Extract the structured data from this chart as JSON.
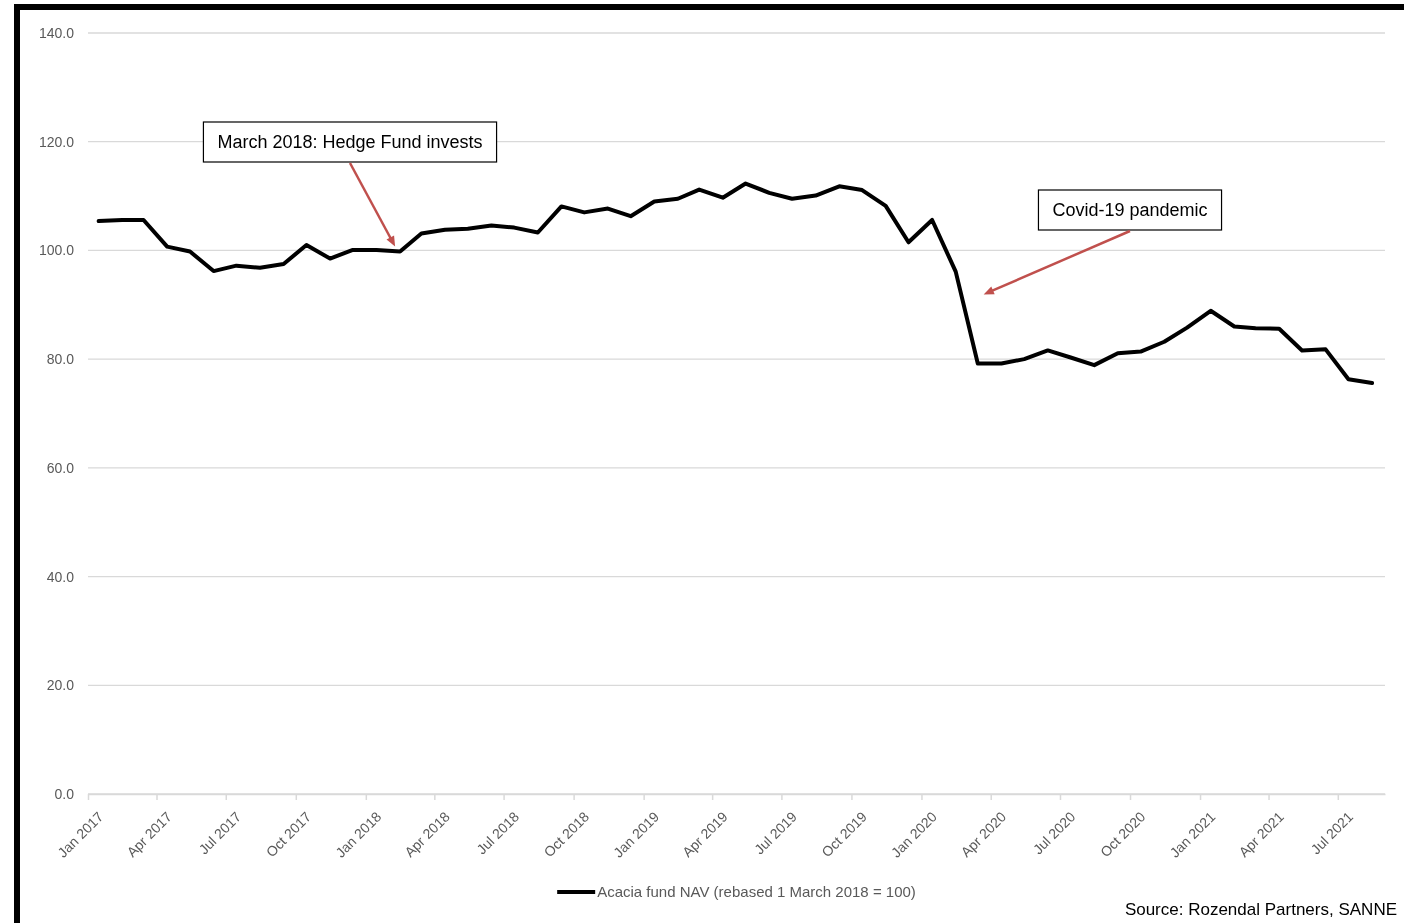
{
  "chart_data": {
    "type": "line",
    "legend": "bottom",
    "grid": "y",
    "line_style": "solid",
    "marker": "none",
    "x": [
      "2017-01-15",
      "2017-02-15",
      "2017-03-15",
      "2017-04-15",
      "2017-05-15",
      "2017-06-15",
      "2017-07-15",
      "2017-08-15",
      "2017-09-15",
      "2017-10-15",
      "2017-11-15",
      "2017-12-15",
      "2018-01-15",
      "2018-02-15",
      "2018-03-15",
      "2018-04-15",
      "2018-05-15",
      "2018-06-15",
      "2018-07-15",
      "2018-08-15",
      "2018-09-15",
      "2018-10-15",
      "2018-11-15",
      "2018-12-15",
      "2019-01-15",
      "2019-02-15",
      "2019-03-15",
      "2019-04-15",
      "2019-05-15",
      "2019-06-15",
      "2019-07-15",
      "2019-08-15",
      "2019-09-15",
      "2019-10-15",
      "2019-11-15",
      "2019-12-15",
      "2020-01-15",
      "2020-02-15",
      "2020-03-15",
      "2020-04-15",
      "2020-05-15",
      "2020-06-15",
      "2020-07-15",
      "2020-08-15",
      "2020-09-15",
      "2020-10-15",
      "2020-11-15",
      "2020-12-15",
      "2021-01-15",
      "2021-02-15",
      "2021-03-15",
      "2021-04-15",
      "2021-05-15",
      "2021-06-15",
      "2021-07-15",
      "2021-08-15"
    ],
    "series": [
      {
        "name": "Acacia fund NAV (rebased 1 March 2018 = 100)",
        "color": "#000000",
        "values": [
          105.4,
          105.6,
          105.6,
          100.7,
          99.8,
          96.2,
          97.2,
          96.8,
          97.5,
          101.0,
          98.5,
          100.1,
          100.1,
          99.8,
          103.1,
          103.8,
          104.0,
          104.6,
          104.2,
          103.3,
          108.1,
          107.0,
          107.7,
          106.3,
          109.0,
          109.5,
          111.2,
          109.7,
          112.3,
          110.6,
          109.5,
          110.1,
          111.8,
          111.1,
          108.2,
          101.5,
          105.6,
          96.1,
          79.2,
          79.2,
          80.0,
          81.6,
          80.3,
          78.9,
          81.1,
          81.4,
          83.2,
          85.8,
          88.9,
          86.0,
          85.7,
          85.6,
          81.6,
          81.8,
          76.3,
          75.6
        ]
      }
    ],
    "xlim": [
      "2017-01-01",
      "2021-09-01"
    ],
    "xticks": [
      {
        "value": "2017-01-01",
        "label": "Jan 2017"
      },
      {
        "value": "2017-04-01",
        "label": "Apr 2017"
      },
      {
        "value": "2017-07-01",
        "label": "Jul 2017"
      },
      {
        "value": "2017-10-01",
        "label": "Oct 2017"
      },
      {
        "value": "2018-01-01",
        "label": "Jan 2018"
      },
      {
        "value": "2018-04-01",
        "label": "Apr 2018"
      },
      {
        "value": "2018-07-01",
        "label": "Jul 2018"
      },
      {
        "value": "2018-10-01",
        "label": "Oct 2018"
      },
      {
        "value": "2019-01-01",
        "label": "Jan 2019"
      },
      {
        "value": "2019-04-01",
        "label": "Apr 2019"
      },
      {
        "value": "2019-07-01",
        "label": "Jul 2019"
      },
      {
        "value": "2019-10-01",
        "label": "Oct 2019"
      },
      {
        "value": "2020-01-01",
        "label": "Jan 2020"
      },
      {
        "value": "2020-04-01",
        "label": "Apr 2020"
      },
      {
        "value": "2020-07-01",
        "label": "Jul 2020"
      },
      {
        "value": "2020-10-01",
        "label": "Oct 2020"
      },
      {
        "value": "2021-01-01",
        "label": "Jan 2021"
      },
      {
        "value": "2021-04-01",
        "label": "Apr 2021"
      },
      {
        "value": "2021-07-01",
        "label": "Jul 2021"
      }
    ],
    "ylim": [
      0,
      140
    ],
    "yticks": [
      {
        "value": 0,
        "label": "0.0"
      },
      {
        "value": 20,
        "label": "20.0"
      },
      {
        "value": 40,
        "label": "40.0"
      },
      {
        "value": 60,
        "label": "60.0"
      },
      {
        "value": 80,
        "label": "80.0"
      },
      {
        "value": 100,
        "label": "100.0"
      },
      {
        "value": 120,
        "label": "120.0"
      },
      {
        "value": 140,
        "label": "140.0"
      }
    ],
    "annotations": [
      "March 2018: Hedge Fund invests",
      "Covid-19 pandemic",
      "Source: Rozendal Partners, SANNE"
    ]
  }
}
